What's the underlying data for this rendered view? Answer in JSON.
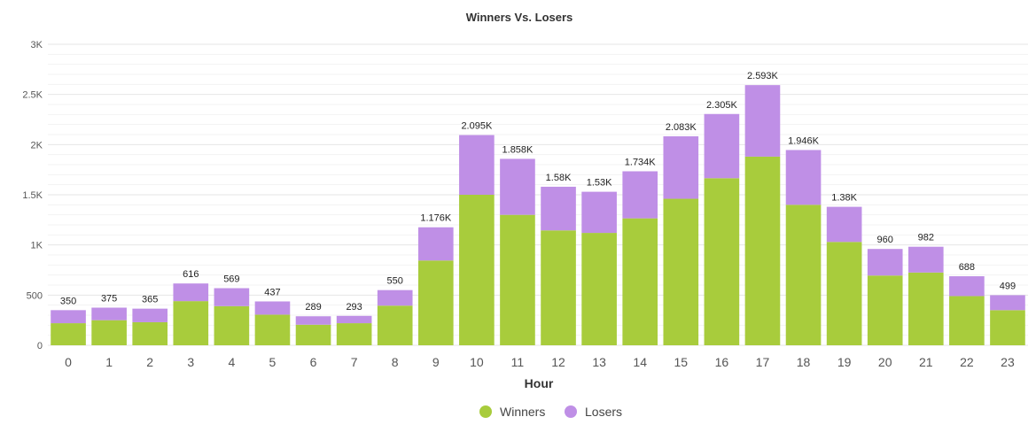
{
  "chart_data": {
    "type": "bar",
    "stacked": true,
    "title": "Winners Vs. Losers",
    "xlabel": "Hour",
    "ylabel": "",
    "ylim": [
      0,
      3000
    ],
    "y_ticks": [
      0,
      500,
      1000,
      1500,
      2000,
      2500,
      3000
    ],
    "y_tick_labels": [
      "0",
      "500",
      "1K",
      "1.5K",
      "2K",
      "2.5K",
      "3K"
    ],
    "grid": true,
    "legend_position": "bottom-center",
    "categories": [
      "0",
      "1",
      "2",
      "3",
      "4",
      "5",
      "6",
      "7",
      "8",
      "9",
      "10",
      "11",
      "12",
      "13",
      "14",
      "15",
      "16",
      "17",
      "18",
      "19",
      "20",
      "21",
      "22",
      "23"
    ],
    "series": [
      {
        "name": "Winners",
        "color": "#a8cc3c",
        "values": [
          220,
          250,
          230,
          440,
          390,
          305,
          205,
          220,
          395,
          845,
          1500,
          1300,
          1145,
          1120,
          1265,
          1460,
          1665,
          1880,
          1400,
          1030,
          695,
          725,
          490,
          350
        ]
      },
      {
        "name": "Losers",
        "color": "#bf8fe6",
        "values": [
          130,
          125,
          135,
          176,
          179,
          132,
          84,
          73,
          155,
          331,
          595,
          558,
          435,
          410,
          469,
          623,
          640,
          713,
          546,
          350,
          265,
          257,
          198,
          149
        ]
      }
    ],
    "totals": [
      350,
      375,
      365,
      616,
      569,
      437,
      289,
      293,
      550,
      1176,
      2095,
      1858,
      1580,
      1530,
      1734,
      2083,
      2305,
      2593,
      1946,
      1380,
      960,
      982,
      688,
      499
    ],
    "total_labels": [
      "350",
      "375",
      "365",
      "616",
      "569",
      "437",
      "289",
      "293",
      "550",
      "1.176K",
      "2.095K",
      "1.858K",
      "1.58K",
      "1.53K",
      "1.734K",
      "2.083K",
      "2.305K",
      "2.593K",
      "1.946K",
      "1.38K",
      "960",
      "982",
      "688",
      "499"
    ]
  }
}
